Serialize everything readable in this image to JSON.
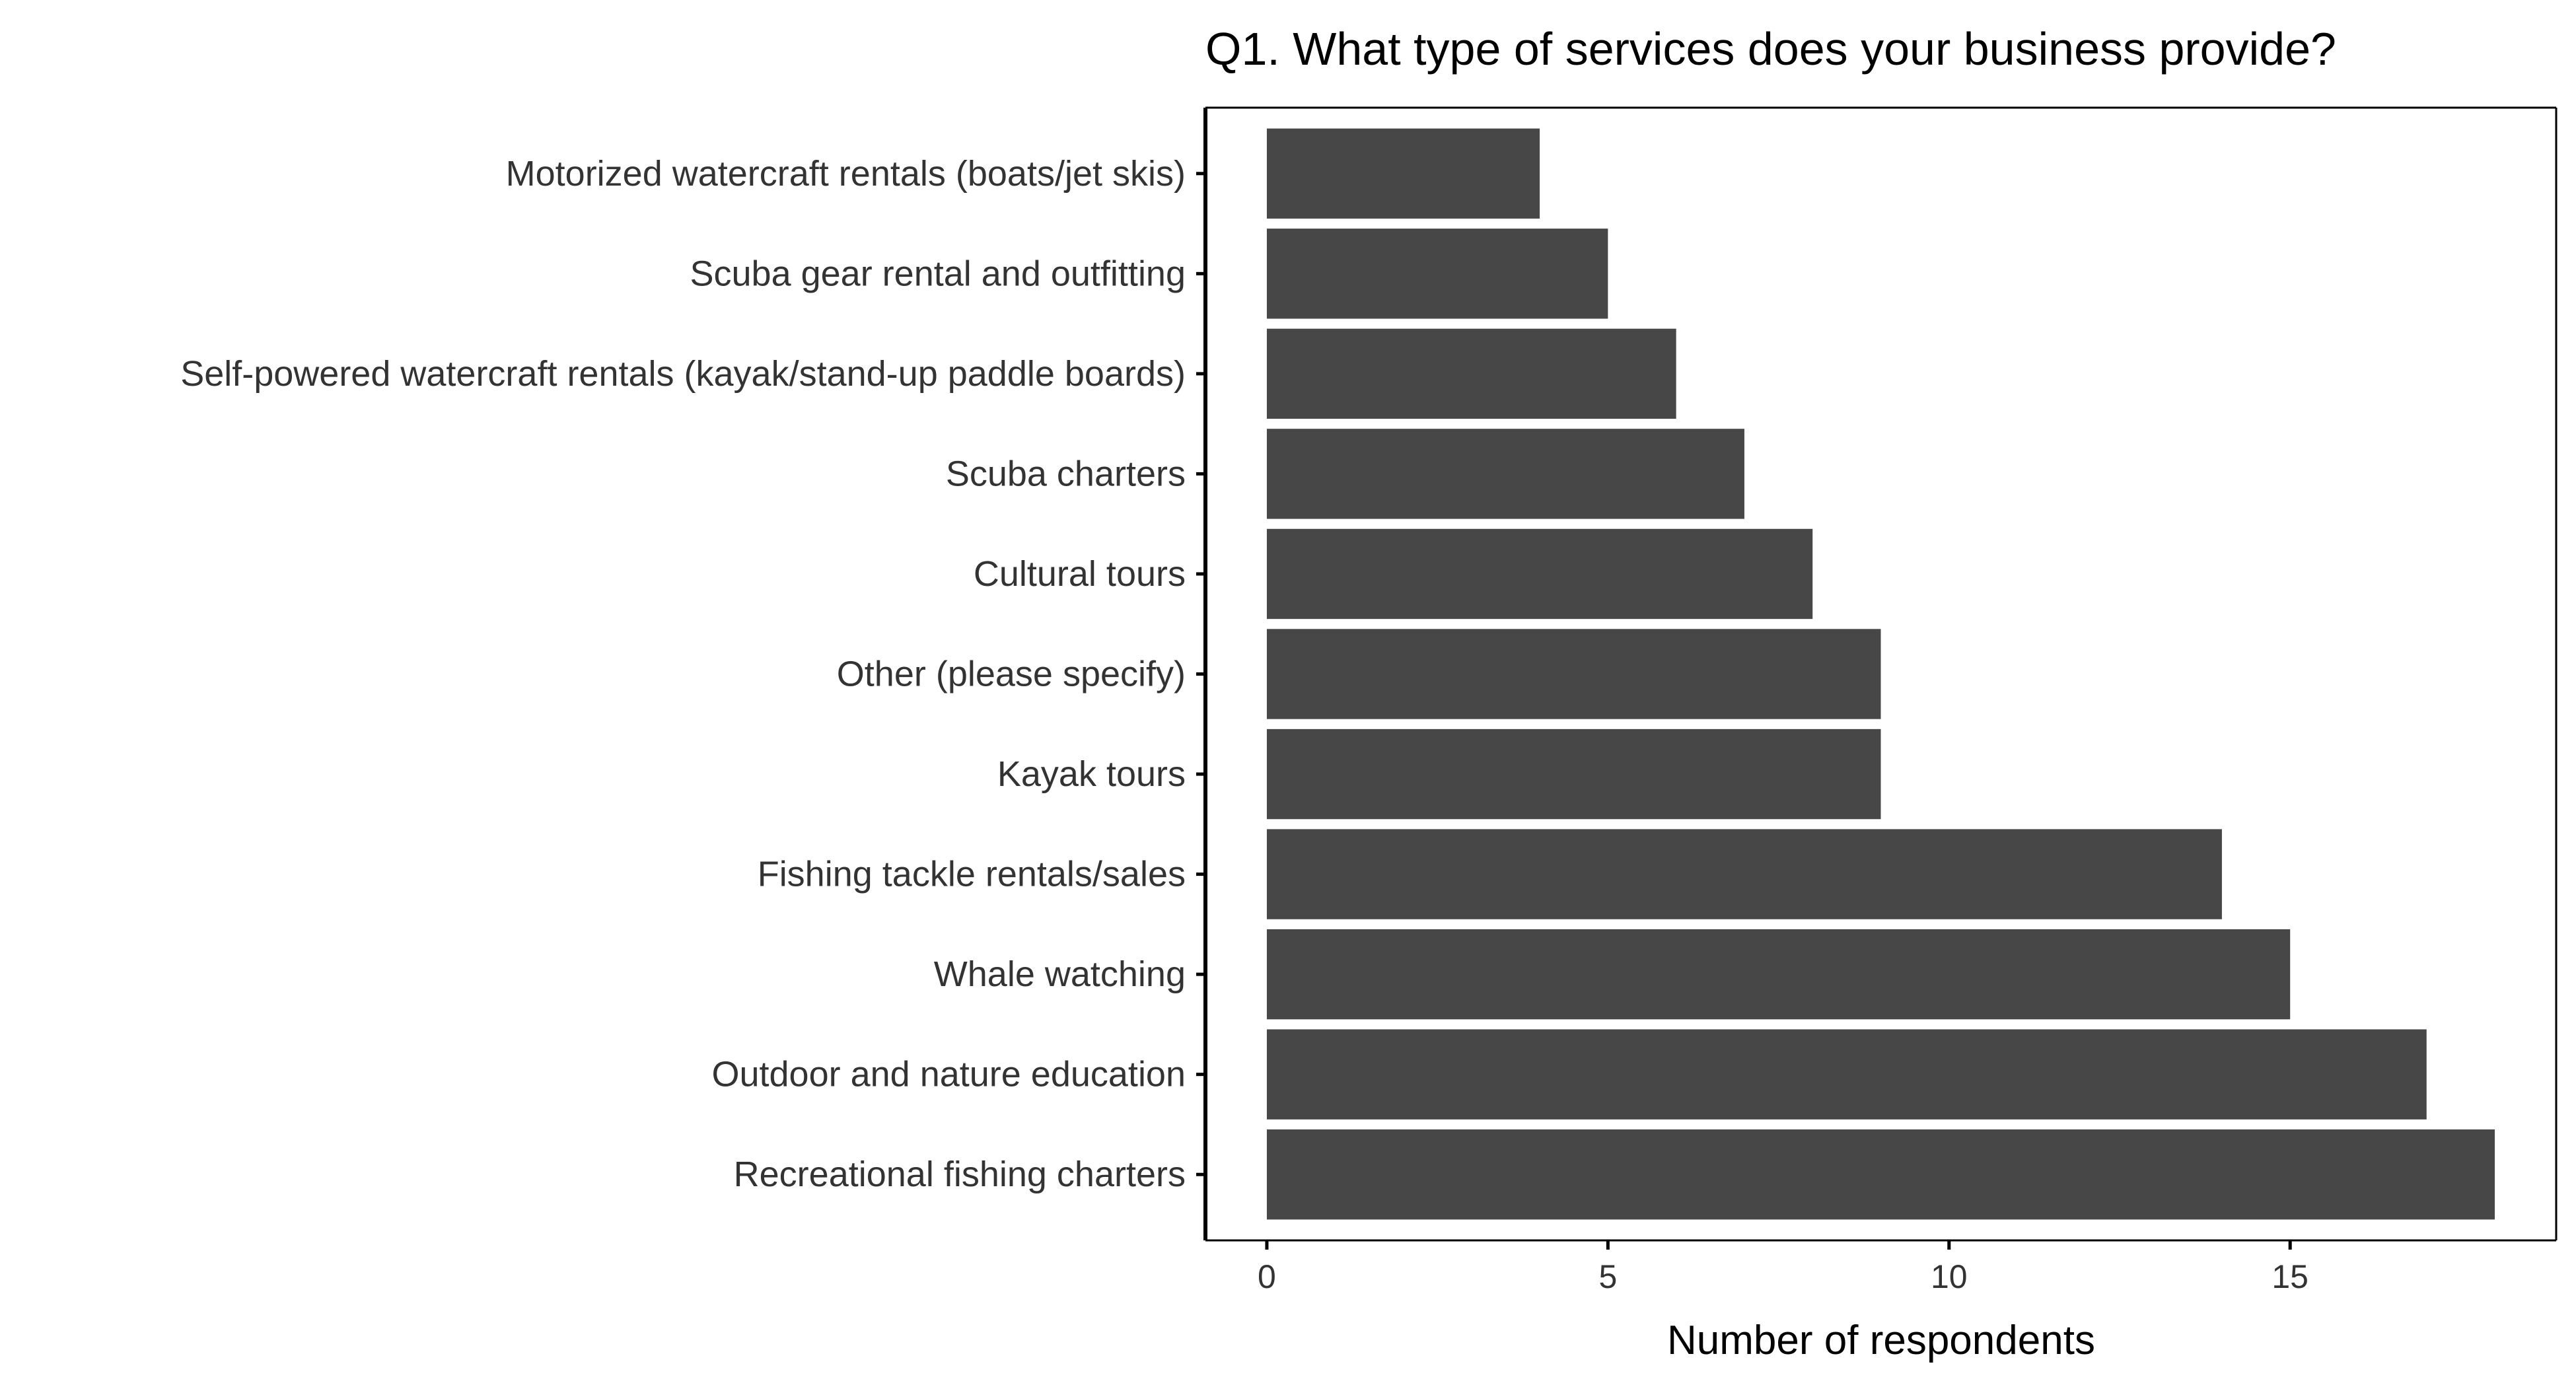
{
  "chart_data": {
    "type": "bar",
    "orientation": "horizontal",
    "title": "Q1. What type of services does your business provide?",
    "xlabel": "Number of respondents",
    "ylabel": "",
    "xlim": [
      -0.9,
      18.9
    ],
    "xticks": [
      0,
      5,
      10,
      15
    ],
    "bar_color": "#474747",
    "grid": false,
    "categories": [
      "Motorized watercraft rentals (boats/jet skis)",
      "Scuba gear rental and outfitting",
      "Self-powered watercraft rentals (kayak/stand-up paddle boards)",
      "Scuba charters",
      "Cultural tours",
      "Other (please specify)",
      "Kayak tours",
      "Fishing tackle rentals/sales",
      "Whale watching",
      "Outdoor and nature education",
      "Recreational fishing charters"
    ],
    "values": [
      4,
      5,
      6,
      7,
      8,
      9,
      9,
      14,
      15,
      17,
      18
    ]
  }
}
